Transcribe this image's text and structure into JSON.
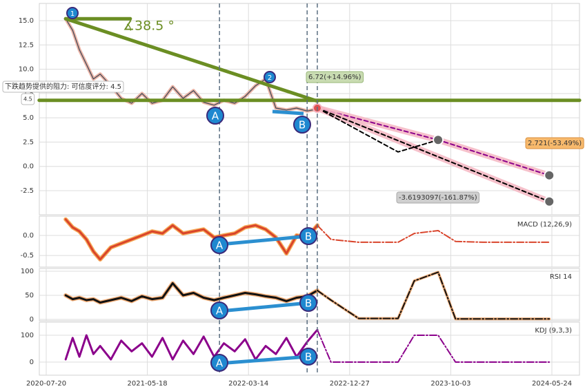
{
  "chart_data": [
    {
      "type": "line",
      "grid": true,
      "xlim": [
        "2020-06-29",
        "2024-07-27"
      ],
      "ylim": [
        -4.98,
        16.77
      ],
      "yticks": [
        {
          "value": 15,
          "label": "15.0"
        },
        12.5,
        {
          "value": 10,
          "label": "10.0"
        },
        7.5,
        {
          "value": 5,
          "label": "5.0"
        },
        2.5,
        {
          "value": 0,
          "label": "0.0"
        },
        -2.5
      ],
      "vlines": [
        "2021-12-18",
        "2022-08-28",
        "2022-09-26"
      ],
      "annotations": [
        "∡38.5 °",
        "6.72(+14.96%)",
        "2.721(-53.49%)",
        "-3.6193097(-161.87%)",
        "下跌趋势提供的阻力: 可信度评分: 4.5",
        "4.5"
      ],
      "markers": [
        "1",
        "2",
        "A",
        "B"
      ],
      "series": [
        {
          "style": "price",
          "color": "#3a4656",
          "halo": "#e7a796",
          "x": [
            "2020-09-16",
            "2020-10-07",
            "2020-10-27",
            "2020-11-17",
            "2020-12-08",
            "2020-12-28",
            "2021-01-29",
            "2021-03-01",
            "2021-04-01",
            "2021-05-02",
            "2021-06-01",
            "2021-07-02",
            "2021-08-01",
            "2021-09-01",
            "2021-10-02",
            "2021-11-01",
            "2021-12-02",
            "2021-12-31",
            "2022-02-01",
            "2022-03-04",
            "2022-04-03",
            "2022-05-02",
            "2022-05-31",
            "2022-06-30",
            "2022-07-29",
            "2022-08-28",
            "2022-09-26"
          ],
          "values": [
            15.2,
            14.0,
            12.0,
            10.5,
            9.0,
            9.5,
            8.3,
            7.0,
            6.5,
            7.5,
            6.5,
            6.8,
            8.2,
            7.0,
            7.8,
            6.6,
            6.3,
            6.8,
            6.5,
            7.2,
            8.3,
            9.0,
            6.0,
            5.8,
            6.0,
            5.7,
            5.9
          ]
        },
        {
          "style": "trend",
          "color": "#6b8e23",
          "x": [
            "2020-09-16",
            "2022-09-26"
          ],
          "values": [
            15.2,
            6.72
          ]
        },
        {
          "style": "trend",
          "color": "#6b8e23",
          "x": [
            "2020-06-29",
            "2024-07-27"
          ],
          "values": [
            6.8,
            6.8
          ]
        },
        {
          "style": "trend",
          "color": "#6b8e23",
          "x": [
            "2020-09-16",
            "2021-03-28"
          ],
          "values": [
            15.2,
            15.2
          ]
        },
        {
          "style": "projection",
          "color": "#8b008b",
          "halo": "#f4b6c2",
          "x": [
            "2022-09-26",
            "2023-08-29",
            "2024-05-18"
          ],
          "values": [
            6.0,
            2.721,
            -0.92
          ]
        },
        {
          "style": "projection",
          "color": "#000000",
          "halo": "#f4b6c2",
          "x": [
            "2022-09-26",
            "2024-05-18"
          ],
          "values": [
            6.0,
            -3.6193097
          ]
        },
        {
          "style": "projection",
          "color": "#000000",
          "x": [
            "2022-09-26",
            "2023-05-10",
            "2023-08-29"
          ],
          "values": [
            6.0,
            1.49,
            2.721
          ]
        }
      ]
    },
    {
      "type": "line",
      "grid": true,
      "label": "MACD (12,26,9)",
      "xlim": [
        "2020-06-29",
        "2024-07-27"
      ],
      "ylim": [
        -0.79,
        0.48
      ],
      "yticks": [
        {
          "value": 0,
          "label": "0.0"
        },
        -0.5
      ],
      "markers": [
        "A",
        "B"
      ],
      "series": [
        {
          "style": "indicator",
          "color": "#d9442b",
          "halo": "#f59a3a",
          "x": [
            "2020-09-16",
            "2020-10-07",
            "2020-10-27",
            "2020-11-17",
            "2020-12-08",
            "2020-12-28",
            "2021-01-29",
            "2021-03-01",
            "2021-04-01",
            "2021-05-02",
            "2021-06-01",
            "2021-07-02",
            "2021-08-01",
            "2021-09-01",
            "2021-10-02",
            "2021-11-01",
            "2021-12-02",
            "2021-12-31",
            "2022-02-01",
            "2022-03-04",
            "2022-04-03",
            "2022-05-02",
            "2022-05-31",
            "2022-06-30",
            "2022-07-29",
            "2022-08-28",
            "2022-09-26"
          ],
          "values": [
            0.4,
            0.2,
            0.1,
            -0.1,
            -0.4,
            -0.6,
            -0.3,
            -0.2,
            -0.1,
            0.0,
            0.1,
            0.05,
            0.25,
            0.05,
            0.1,
            0.15,
            -0.05,
            0.0,
            0.05,
            0.2,
            0.25,
            0.15,
            -0.05,
            -0.45,
            0.0,
            -0.05,
            0.25
          ]
        },
        {
          "style": "forecast",
          "color": "#d9442b",
          "x": [
            "2022-09-26",
            "2022-11-04",
            "2023-01-21",
            "2023-05-10",
            "2023-06-24",
            "2023-08-29",
            "2023-10-14",
            "2023-12-17",
            "2024-05-18"
          ],
          "values": [
            0.25,
            -0.1,
            -0.17,
            -0.17,
            0.05,
            0.12,
            -0.15,
            -0.17,
            -0.17
          ]
        }
      ]
    },
    {
      "type": "line",
      "grid": true,
      "label": "RSI 14",
      "xlim": [
        "2020-06-29",
        "2024-07-27"
      ],
      "ylim": [
        -2.9,
        105.7
      ],
      "yticks": [
        0,
        50,
        100
      ],
      "markers": [
        "A",
        "B"
      ],
      "series": [
        {
          "style": "indicator",
          "color": "#111111",
          "halo": "#f0a060",
          "x": [
            "2020-09-16",
            "2020-10-07",
            "2020-10-27",
            "2020-11-17",
            "2020-12-08",
            "2020-12-28",
            "2021-01-29",
            "2021-03-01",
            "2021-04-01",
            "2021-05-02",
            "2021-06-01",
            "2021-07-02",
            "2021-08-01",
            "2021-09-01",
            "2021-10-02",
            "2021-11-01",
            "2021-12-02",
            "2021-12-31",
            "2022-02-01",
            "2022-03-04",
            "2022-04-03",
            "2022-05-02",
            "2022-05-31",
            "2022-06-30",
            "2022-07-29",
            "2022-08-28",
            "2022-09-26"
          ],
          "values": [
            50,
            42,
            45,
            40,
            42,
            35,
            40,
            45,
            38,
            48,
            42,
            45,
            75,
            50,
            55,
            45,
            40,
            45,
            50,
            55,
            52,
            48,
            45,
            38,
            45,
            48,
            60
          ]
        },
        {
          "style": "forecast",
          "color": "#111111",
          "halo": "#f0a060",
          "x": [
            "2022-09-26",
            "2022-11-04",
            "2023-01-21",
            "2023-05-10",
            "2023-06-24",
            "2023-08-29",
            "2023-10-14",
            "2023-12-17",
            "2024-05-18"
          ],
          "values": [
            60,
            40,
            2,
            2,
            80,
            98,
            1,
            1,
            1
          ]
        }
      ]
    },
    {
      "type": "line",
      "grid": true,
      "label": "KDJ (9,3,3)",
      "xlim": [
        "2020-06-29",
        "2024-07-27"
      ],
      "ylim": [
        -48.7,
        148.7
      ],
      "yticks": [
        0,
        100
      ],
      "xticks": [
        "2020-07-20",
        "2021-05-18",
        "2022-03-14",
        "2022-12-27",
        "2023-10-03",
        "2024-05-24"
      ],
      "markers": [
        "A",
        "B"
      ],
      "series": [
        {
          "style": "indicator",
          "color": "#8b008b",
          "x": [
            "2020-09-16",
            "2020-10-07",
            "2020-10-27",
            "2020-11-17",
            "2020-12-08",
            "2020-12-28",
            "2021-01-29",
            "2021-03-01",
            "2021-04-01",
            "2021-05-02",
            "2021-06-01",
            "2021-07-02",
            "2021-08-01",
            "2021-09-01",
            "2021-10-02",
            "2021-11-01",
            "2021-12-02",
            "2021-12-31",
            "2022-02-01",
            "2022-03-04",
            "2022-04-03",
            "2022-05-02",
            "2022-05-31",
            "2022-06-30",
            "2022-07-29",
            "2022-08-28",
            "2022-09-26"
          ],
          "values": [
            10,
            90,
            20,
            100,
            30,
            60,
            10,
            80,
            40,
            70,
            20,
            90,
            10,
            80,
            30,
            95,
            20,
            70,
            40,
            85,
            10,
            60,
            30,
            90,
            20,
            75,
            120
          ]
        },
        {
          "style": "forecast",
          "color": "#8b008b",
          "x": [
            "2022-09-26",
            "2022-11-04",
            "2023-01-21",
            "2023-05-10",
            "2023-06-24",
            "2023-08-29",
            "2023-10-14",
            "2023-12-17",
            "2024-05-18"
          ],
          "values": [
            120,
            0,
            0,
            0,
            100,
            100,
            0,
            0,
            0
          ]
        }
      ]
    }
  ]
}
